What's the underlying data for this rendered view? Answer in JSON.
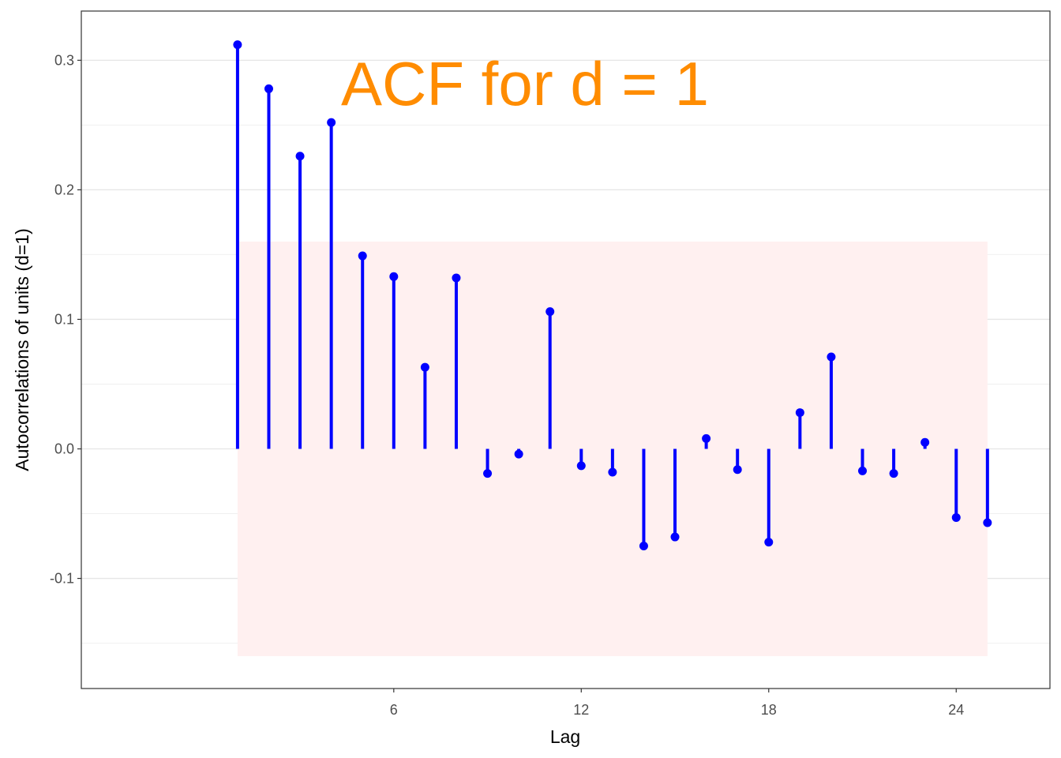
{
  "chart_data": {
    "type": "lollipop",
    "xlabel": "Lag",
    "ylabel": "Autocorrelations of units (d=1)",
    "annotation": "ACF for d = 1",
    "x": [
      1,
      2,
      3,
      4,
      5,
      6,
      7,
      8,
      9,
      10,
      11,
      12,
      13,
      14,
      15,
      16,
      17,
      18,
      19,
      20,
      21,
      22,
      23,
      24,
      25
    ],
    "values": [
      0.312,
      0.278,
      0.226,
      0.252,
      0.149,
      0.133,
      0.063,
      0.132,
      -0.019,
      -0.004,
      0.106,
      -0.013,
      -0.018,
      -0.075,
      -0.068,
      0.008,
      -0.016,
      -0.072,
      0.028,
      0.071,
      -0.017,
      -0.019,
      0.005,
      -0.053,
      -0.057
    ],
    "confidence_band": [
      -0.16,
      0.16
    ],
    "xlim": [
      -4,
      27
    ],
    "ylim": [
      -0.185,
      0.338
    ],
    "x_ticks": [
      6,
      12,
      18,
      24
    ],
    "y_ticks": [
      -0.1,
      0.0,
      0.1,
      0.2,
      0.3
    ],
    "y_tick_labels": [
      "-0.1",
      "0.0",
      "0.1",
      "0.2",
      "0.3"
    ],
    "grid": true,
    "colors": {
      "stem": "#0000ff",
      "band": "#fff0f0",
      "annotation": "#ff8c00",
      "grid_major": "#e6e6e6",
      "grid_minor": "#f0f0f0",
      "panel_border": "#333333"
    }
  }
}
